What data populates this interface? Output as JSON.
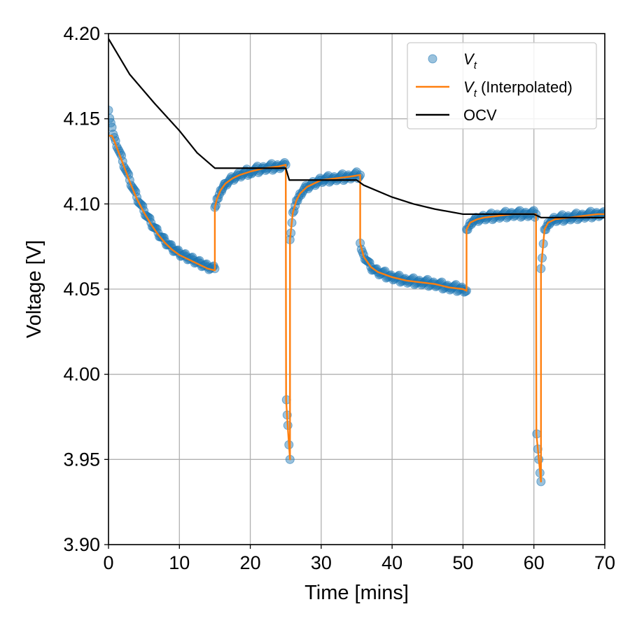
{
  "chart_data": {
    "type": "line",
    "xlabel": "Time [mins]",
    "ylabel": "Voltage [V]",
    "xlim": [
      0,
      70
    ],
    "ylim": [
      3.9,
      4.2
    ],
    "xticks": [
      "0",
      "10",
      "20",
      "30",
      "40",
      "50",
      "60",
      "70"
    ],
    "yticks": [
      "3.90",
      "3.95",
      "4.00",
      "4.05",
      "4.10",
      "4.15",
      "4.20"
    ],
    "grid": true,
    "legend_position": "top-right",
    "legend": {
      "measured": {
        "main": "V",
        "sub": "t",
        "suffix": ""
      },
      "interpolated": {
        "main": "V",
        "sub": "t",
        "suffix": " (Interpolated)"
      },
      "ocv": {
        "main": "OCV",
        "sub": "",
        "suffix": ""
      }
    },
    "colors": {
      "measured": "#1f77b4",
      "interpolated": "#ff7f0e",
      "ocv": "#000000",
      "grid": "#b0b0b0"
    },
    "series": [
      {
        "key": "measured",
        "style": "markers",
        "x": [
          0.0,
          0.5,
          1.0,
          2.0,
          3.0,
          4.0,
          5.0,
          6.0,
          7.0,
          8.0,
          9.0,
          10.0,
          11.0,
          12.0,
          13.0,
          14.0,
          15.0,
          15.0,
          15.3,
          15.8,
          16.5,
          17.5,
          18.5,
          20.0,
          22.0,
          24.0,
          25.0,
          25.1,
          25.3,
          25.6,
          25.6,
          26.0,
          26.5,
          27.0,
          28.0,
          29.0,
          30.0,
          32.0,
          34.0,
          35.5,
          35.5,
          36.0,
          37.0,
          38.0,
          40.0,
          42.0,
          44.0,
          46.0,
          48.0,
          50.0,
          50.5,
          50.5,
          51.0,
          52.0,
          53.0,
          55.0,
          57.0,
          59.0,
          60.3,
          60.4,
          60.7,
          61.0,
          61.0,
          61.5,
          62.0,
          63.0,
          65.0,
          67.0,
          69.0,
          70.0
        ],
        "y": [
          4.155,
          4.145,
          4.137,
          4.125,
          4.114,
          4.104,
          4.096,
          4.089,
          4.083,
          4.078,
          4.074,
          4.071,
          4.069,
          4.067,
          4.065,
          4.063,
          4.062,
          4.098,
          4.103,
          4.108,
          4.112,
          4.115,
          4.117,
          4.119,
          4.121,
          4.122,
          4.123,
          3.985,
          3.97,
          3.95,
          4.079,
          4.095,
          4.102,
          4.106,
          4.11,
          4.112,
          4.114,
          4.115,
          4.116,
          4.117,
          4.077,
          4.07,
          4.063,
          4.06,
          4.057,
          4.055,
          4.054,
          4.053,
          4.051,
          4.05,
          4.049,
          4.085,
          4.089,
          4.091,
          4.092,
          4.093,
          4.094,
          4.094,
          4.094,
          3.965,
          3.95,
          3.937,
          4.062,
          4.085,
          4.089,
          4.091,
          4.092,
          4.093,
          4.094,
          4.094
        ]
      },
      {
        "key": "interpolated",
        "style": "line",
        "x": [
          0.0,
          0.5,
          1.0,
          2.0,
          3.0,
          4.0,
          5.0,
          6.0,
          7.0,
          8.0,
          9.0,
          10.0,
          11.0,
          12.0,
          13.0,
          14.0,
          15.0,
          15.0,
          15.3,
          15.8,
          16.5,
          17.5,
          18.5,
          20.0,
          22.0,
          24.0,
          25.0,
          25.05,
          25.3,
          25.6,
          25.6,
          26.0,
          26.5,
          27.0,
          28.0,
          29.0,
          30.0,
          32.0,
          34.0,
          35.5,
          35.5,
          36.0,
          37.0,
          38.0,
          40.0,
          42.0,
          44.0,
          46.0,
          48.0,
          50.0,
          50.5,
          50.5,
          51.0,
          52.0,
          53.0,
          55.0,
          57.0,
          59.0,
          60.3,
          60.35,
          60.7,
          61.0,
          61.0,
          61.5,
          62.0,
          63.0,
          65.0,
          67.0,
          69.0,
          70.0
        ],
        "y": [
          4.14,
          4.14,
          4.135,
          4.124,
          4.113,
          4.103,
          4.095,
          4.088,
          4.082,
          4.077,
          4.073,
          4.07,
          4.068,
          4.066,
          4.064,
          4.062,
          4.061,
          4.098,
          4.103,
          4.108,
          4.112,
          4.115,
          4.117,
          4.119,
          4.121,
          4.122,
          4.123,
          3.985,
          3.968,
          3.95,
          4.079,
          4.095,
          4.102,
          4.106,
          4.11,
          4.112,
          4.114,
          4.115,
          4.116,
          4.117,
          4.077,
          4.069,
          4.063,
          4.06,
          4.057,
          4.055,
          4.054,
          4.053,
          4.051,
          4.05,
          4.049,
          4.085,
          4.089,
          4.091,
          4.092,
          4.093,
          4.094,
          4.094,
          4.094,
          3.965,
          3.95,
          3.937,
          4.062,
          4.085,
          4.089,
          4.091,
          4.092,
          4.093,
          4.094,
          4.094
        ]
      },
      {
        "key": "ocv",
        "style": "line",
        "x": [
          0,
          3,
          6.5,
          10,
          12.5,
          15,
          20,
          25,
          25.5,
          35,
          36,
          40,
          43,
          46,
          50,
          55,
          60,
          61,
          65,
          70
        ],
        "y": [
          4.197,
          4.176,
          4.159,
          4.143,
          4.13,
          4.121,
          4.121,
          4.121,
          4.114,
          4.114,
          4.111,
          4.104,
          4.1,
          4.097,
          4.094,
          4.094,
          4.094,
          4.092,
          4.092,
          4.092
        ]
      }
    ]
  }
}
